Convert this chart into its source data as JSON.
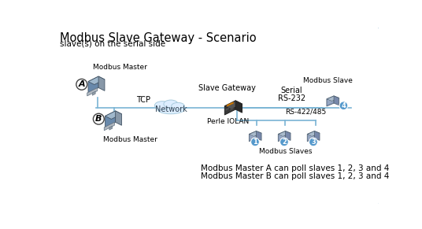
{
  "title": "Modbus Slave Gateway - Scenario",
  "subtitle": "slave(s) on the serial side",
  "bg_color": "#ffffff",
  "border_color": "#aac8e0",
  "line_color": "#7ab4d4",
  "modbus_master_label": "Modbus Master",
  "tcp_label": "TCP",
  "network_label": "Network",
  "gateway_label": "Slave Gateway",
  "iolan_label": "Perle IOLAN",
  "serial_label": "Serial",
  "rs232_label": "RS-232",
  "rs485_label": "RS-422/485",
  "modbus_slave_label": "Modbus Slave",
  "modbus_slaves_label": "Modbus Slaves",
  "note1": "Modbus Master A can poll slaves 1, 2, 3 and 4",
  "note2": "Modbus Master B can poll slaves 1, 2, 3 and 4",
  "circle_color": "#5599cc",
  "label_A": "A",
  "label_B": "B"
}
